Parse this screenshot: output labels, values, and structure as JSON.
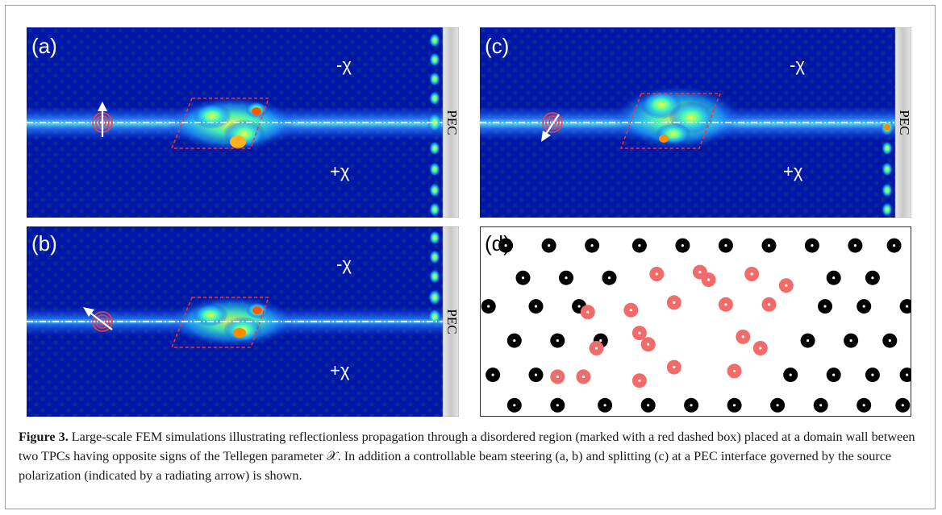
{
  "panels": {
    "a": {
      "label": "(a)",
      "region_top": "-χ",
      "region_bottom": "+χ",
      "boundary_label": "PEC",
      "source_arrow": "up"
    },
    "b": {
      "label": "(b)",
      "region_top": "-χ",
      "region_bottom": "+χ",
      "boundary_label": "PEC",
      "source_arrow": "up-left"
    },
    "c": {
      "label": "(c)",
      "region_top": "-χ",
      "region_bottom": "+χ",
      "boundary_label": "PEC",
      "source_arrow": "down-left"
    },
    "d": {
      "label": "(d)",
      "rod_colors": {
        "regular": "#000000",
        "disordered": "#f26b6b",
        "dot": "#ffffff"
      },
      "regular_rods": [
        [
          0.06,
          0.1
        ],
        [
          0.16,
          0.1
        ],
        [
          0.26,
          0.1
        ],
        [
          0.37,
          0.1
        ],
        [
          0.47,
          0.1
        ],
        [
          0.57,
          0.1
        ],
        [
          0.67,
          0.1
        ],
        [
          0.77,
          0.1
        ],
        [
          0.87,
          0.1
        ],
        [
          0.96,
          0.1
        ],
        [
          0.1,
          0.27
        ],
        [
          0.2,
          0.27
        ],
        [
          0.3,
          0.27
        ],
        [
          0.82,
          0.27
        ],
        [
          0.91,
          0.27
        ],
        [
          0.02,
          0.42
        ],
        [
          0.13,
          0.42
        ],
        [
          0.23,
          0.42
        ],
        [
          0.8,
          0.42
        ],
        [
          0.89,
          0.42
        ],
        [
          0.99,
          0.42
        ],
        [
          0.08,
          0.6
        ],
        [
          0.18,
          0.6
        ],
        [
          0.28,
          0.6
        ],
        [
          0.76,
          0.6
        ],
        [
          0.86,
          0.6
        ],
        [
          0.95,
          0.6
        ],
        [
          0.03,
          0.78
        ],
        [
          0.13,
          0.78
        ],
        [
          0.72,
          0.78
        ],
        [
          0.82,
          0.78
        ],
        [
          0.91,
          0.78
        ],
        [
          0.99,
          0.78
        ],
        [
          0.08,
          0.94
        ],
        [
          0.18,
          0.94
        ],
        [
          0.29,
          0.94
        ],
        [
          0.39,
          0.94
        ],
        [
          0.49,
          0.94
        ],
        [
          0.59,
          0.94
        ],
        [
          0.69,
          0.94
        ],
        [
          0.79,
          0.94
        ],
        [
          0.89,
          0.94
        ],
        [
          0.98,
          0.94
        ]
      ],
      "disordered_rods": [
        [
          0.41,
          0.25
        ],
        [
          0.51,
          0.24
        ],
        [
          0.53,
          0.28
        ],
        [
          0.63,
          0.25
        ],
        [
          0.71,
          0.31
        ],
        [
          0.25,
          0.45
        ],
        [
          0.35,
          0.44
        ],
        [
          0.45,
          0.4
        ],
        [
          0.57,
          0.41
        ],
        [
          0.67,
          0.41
        ],
        [
          0.37,
          0.56
        ],
        [
          0.39,
          0.62
        ],
        [
          0.27,
          0.64
        ],
        [
          0.61,
          0.58
        ],
        [
          0.65,
          0.64
        ],
        [
          0.18,
          0.79
        ],
        [
          0.24,
          0.79
        ],
        [
          0.37,
          0.81
        ],
        [
          0.45,
          0.74
        ],
        [
          0.59,
          0.76
        ]
      ]
    }
  },
  "caption": {
    "label": "Figure 3.",
    "text": " Large-scale FEM simulations illustrating reflectionless propagation through a disordered region (marked with a red dashed box) placed at a domain wall between two TPCs having opposite signs of the Tellegen parameter 𝒳. In addition a controllable beam steering (a, b) and splitting (c) at a PEC interface governed by the source polarization (indicated by a radiating arrow) is shown."
  }
}
